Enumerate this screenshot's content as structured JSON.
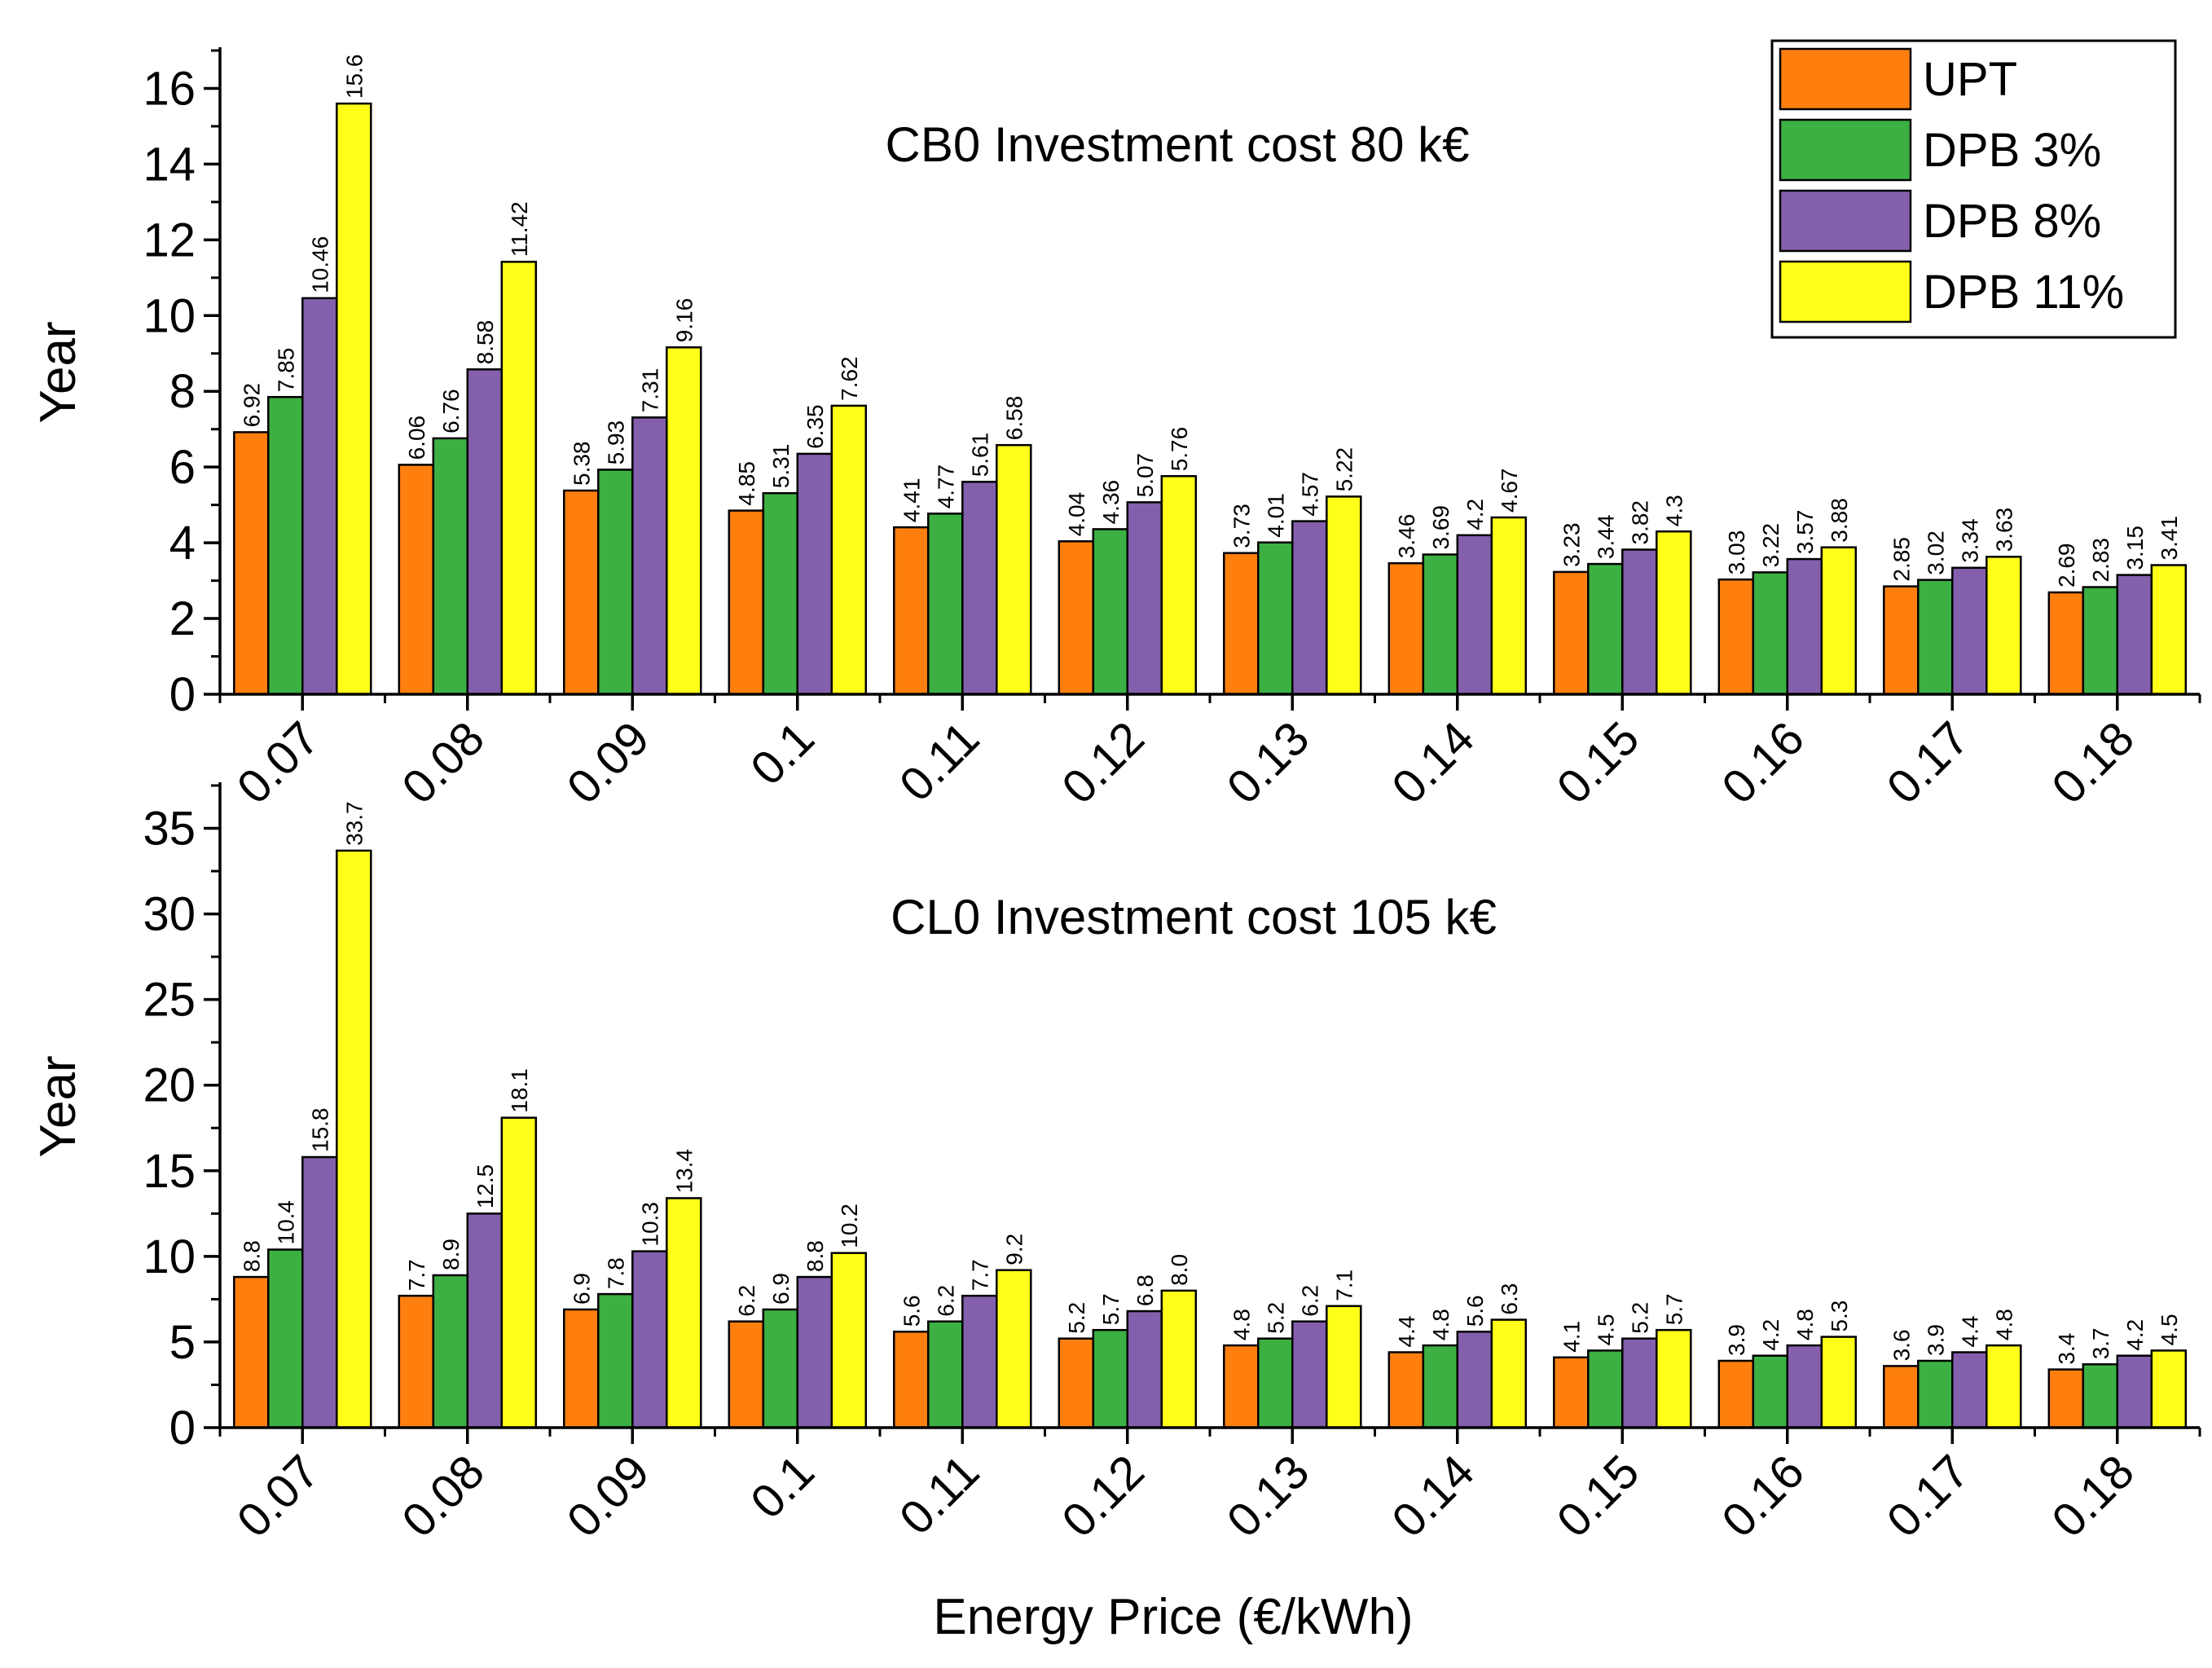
{
  "chart_data": [
    {
      "type": "bar",
      "title": "CB0 Investment cost 80 k€",
      "xlabel": "",
      "ylabel": "Year",
      "ylim": [
        0,
        17
      ],
      "yticks": [
        0,
        2,
        4,
        6,
        8,
        10,
        12,
        14,
        16
      ],
      "categories": [
        "0.07",
        "0.08",
        "0.09",
        "0.1",
        "0.11",
        "0.12",
        "0.13",
        "0.14",
        "0.15",
        "0.16",
        "0.17",
        "0.18"
      ],
      "series": [
        {
          "name": "UPT",
          "color": "#FF7F0E",
          "values": [
            6.92,
            6.06,
            5.38,
            4.85,
            4.41,
            4.04,
            3.73,
            3.46,
            3.23,
            3.03,
            2.85,
            2.69
          ],
          "labels": [
            "6.92",
            "6.06",
            "5.38",
            "4.85",
            "4.41",
            "4.04",
            "3.73",
            "3.46",
            "3.23",
            "3.03",
            "2.85",
            "2.69"
          ]
        },
        {
          "name": "DPB 3%",
          "color": "#3CB043",
          "values": [
            7.85,
            6.76,
            5.93,
            5.31,
            4.77,
            4.36,
            4.01,
            3.69,
            3.44,
            3.22,
            3.02,
            2.83
          ],
          "labels": [
            "7.85",
            "6.76",
            "5.93",
            "5.31",
            "4.77",
            "4.36",
            "4.01",
            "3.69",
            "3.44",
            "3.22",
            "3.02",
            "2.83"
          ]
        },
        {
          "name": "DPB 8%",
          "color": "#8460AC",
          "values": [
            10.46,
            8.58,
            7.31,
            6.35,
            5.61,
            5.07,
            4.57,
            4.2,
            3.82,
            3.57,
            3.34,
            3.15
          ],
          "labels": [
            "10.46",
            "8.58",
            "7.31",
            "6.35",
            "5.61",
            "5.07",
            "4.57",
            "4.2",
            "3.82",
            "3.57",
            "3.34",
            "3.15"
          ]
        },
        {
          "name": "DPB 11%",
          "color": "#FFFF1A",
          "values": [
            15.6,
            11.42,
            9.16,
            7.62,
            6.58,
            5.76,
            5.22,
            4.67,
            4.3,
            3.88,
            3.63,
            3.41
          ],
          "labels": [
            "15.6",
            "11.42",
            "9.16",
            "7.62",
            "6.58",
            "5.76",
            "5.22",
            "4.67",
            "4.3",
            "3.88",
            "3.63",
            "3.41"
          ]
        }
      ],
      "legend": "top-right",
      "grid": false
    },
    {
      "type": "bar",
      "title": "CL0 Investment cost 105 k€",
      "xlabel": "Energy Price (€/kWh)",
      "ylabel": "Year",
      "ylim": [
        0,
        37.5
      ],
      "yticks": [
        0,
        5,
        10,
        15,
        20,
        25,
        30,
        35
      ],
      "categories": [
        "0.07",
        "0.08",
        "0.09",
        "0.1",
        "0.11",
        "0.12",
        "0.13",
        "0.14",
        "0.15",
        "0.16",
        "0.17",
        "0.18"
      ],
      "series": [
        {
          "name": "UPT",
          "color": "#FF7F0E",
          "values": [
            8.8,
            7.7,
            6.9,
            6.2,
            5.6,
            5.2,
            4.8,
            4.4,
            4.1,
            3.9,
            3.6,
            3.4
          ],
          "labels": [
            "8.8",
            "7.7",
            "6.9",
            "6.2",
            "5.6",
            "5.2",
            "4.8",
            "4.4",
            "4.1",
            "3.9",
            "3.6",
            "3.4"
          ]
        },
        {
          "name": "DPB 3%",
          "color": "#3CB043",
          "values": [
            10.4,
            8.9,
            7.8,
            6.9,
            6.2,
            5.7,
            5.2,
            4.8,
            4.5,
            4.2,
            3.9,
            3.7
          ],
          "labels": [
            "10.4",
            "8.9",
            "7.8",
            "6.9",
            "6.2",
            "5.7",
            "5.2",
            "4.8",
            "4.5",
            "4.2",
            "3.9",
            "3.7"
          ]
        },
        {
          "name": "DPB 8%",
          "color": "#8460AC",
          "values": [
            15.8,
            12.5,
            10.3,
            8.8,
            7.7,
            6.8,
            6.2,
            5.6,
            5.2,
            4.8,
            4.4,
            4.2
          ],
          "labels": [
            "15.8",
            "12.5",
            "10.3",
            "8.8",
            "7.7",
            "6.8",
            "6.2",
            "5.6",
            "5.2",
            "4.8",
            "4.4",
            "4.2"
          ]
        },
        {
          "name": "DPB 11%",
          "color": "#FFFF1A",
          "values": [
            33.7,
            18.1,
            13.4,
            10.2,
            9.2,
            8.0,
            7.1,
            6.3,
            5.7,
            5.3,
            4.8,
            4.5
          ],
          "labels": [
            "33.7",
            "18.1",
            "13.4",
            "10.2",
            "9.2",
            "8.0",
            "7.1",
            "6.3",
            "5.7",
            "5.3",
            "4.8",
            "4.5"
          ]
        }
      ],
      "legend": "none",
      "grid": false
    }
  ]
}
